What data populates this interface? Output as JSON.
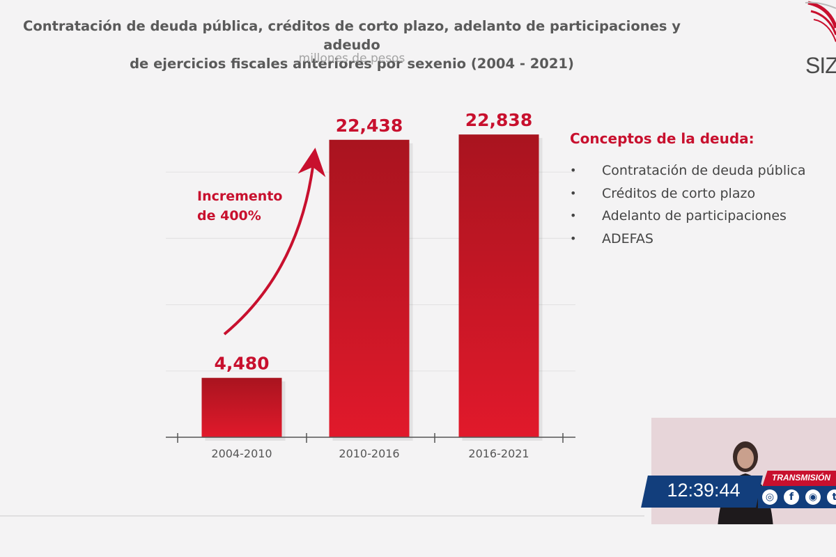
{
  "header": {
    "title_line1": "Contratación de deuda pública, créditos de corto plazo, adelanto de participaciones y adeudo",
    "title_line2": "de ejercicios fiscales anteriores por sexenio (2004 - 2021)",
    "subtitle": "millones de pesos",
    "logo_text": "SIZ"
  },
  "annotation": {
    "line1": "Incremento",
    "line2": "de 400%"
  },
  "legend": {
    "title": "Conceptos de la deuda:",
    "items": [
      "Contratación de deuda pública",
      "Créditos de corto plazo",
      "Adelanto de participaciones",
      "ADEFAS"
    ]
  },
  "overlay": {
    "clock": "12:39:44",
    "stream_label": "TRANSMISIÓN"
  },
  "colors": {
    "bar_top": "#a9141f",
    "bar_bottom": "#e1192b",
    "accent": "#c8102e",
    "clock_bg": "#123e7c"
  },
  "icons": [
    "globe-icon",
    "facebook-icon",
    "instagram-icon",
    "twitter-icon"
  ],
  "chart_data": {
    "type": "bar",
    "title": "Contratación de deuda pública, créditos de corto plazo, adelanto de participaciones y adeudo de ejercicios fiscales anteriores por sexenio (2004 - 2021)",
    "ylabel": "millones de pesos",
    "categories": [
      "2004-2010",
      "2010-2016",
      "2016-2021"
    ],
    "values": [
      4480,
      22438,
      22838
    ],
    "value_labels": [
      "4,480",
      "22,438",
      "22,838"
    ],
    "ylim": [
      0,
      25000
    ],
    "grid": true
  }
}
